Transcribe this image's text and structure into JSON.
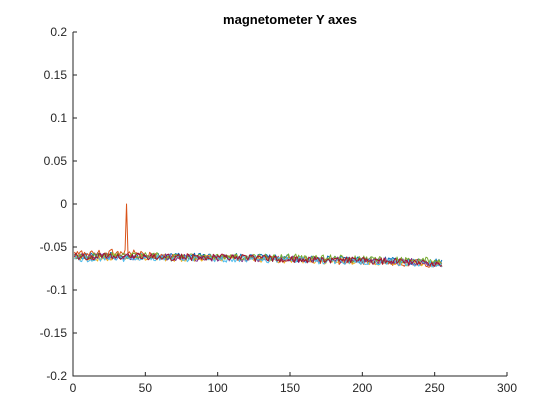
{
  "chart_data": {
    "type": "line",
    "title": "magnetometer Y axes",
    "xlabel": "",
    "ylabel": "",
    "xlim": [
      0,
      300
    ],
    "ylim": [
      -0.2,
      0.2
    ],
    "xticks": [
      0,
      50,
      100,
      150,
      200,
      250,
      300
    ],
    "yticks": [
      -0.2,
      -0.15,
      -0.1,
      -0.05,
      0,
      0.05,
      0.1,
      0.15,
      0.2
    ],
    "xtick_labels": [
      "0",
      "50",
      "100",
      "150",
      "200",
      "250",
      "300"
    ],
    "ytick_labels": [
      "-0.2",
      "-0.15",
      "-0.1",
      "-0.05",
      "0",
      "0.05",
      "0.1",
      "0.15",
      "0.2"
    ],
    "grid": false,
    "legend": "none",
    "series": [
      {
        "color": "#0072BD",
        "x": [
          1,
          25,
          50,
          75,
          100,
          125,
          150,
          175,
          200,
          225,
          255
        ],
        "y": [
          -0.061,
          -0.06,
          -0.061,
          -0.061,
          -0.061,
          -0.062,
          -0.063,
          -0.064,
          -0.065,
          -0.066,
          -0.068
        ]
      },
      {
        "color": "#D95319",
        "x": [
          1,
          20,
          36,
          37,
          38,
          50,
          75,
          100,
          125,
          150,
          175,
          200,
          225,
          255
        ],
        "y": [
          -0.058,
          -0.057,
          -0.056,
          0.0,
          -0.055,
          -0.06,
          -0.061,
          -0.062,
          -0.063,
          -0.064,
          -0.066,
          -0.067,
          -0.069,
          -0.071
        ]
      },
      {
        "color": "#EDB120",
        "x": [
          1,
          25,
          50,
          75,
          100,
          125,
          150,
          175,
          200,
          225,
          255
        ],
        "y": [
          -0.063,
          -0.062,
          -0.062,
          -0.063,
          -0.063,
          -0.064,
          -0.065,
          -0.066,
          -0.067,
          -0.068,
          -0.069
        ]
      },
      {
        "color": "#7E2F8E",
        "x": [
          1,
          25,
          50,
          75,
          100,
          125,
          150,
          175,
          200,
          225,
          255
        ],
        "y": [
          -0.062,
          -0.061,
          -0.062,
          -0.062,
          -0.063,
          -0.063,
          -0.064,
          -0.065,
          -0.066,
          -0.067,
          -0.068
        ]
      },
      {
        "color": "#77AC30",
        "x": [
          1,
          25,
          50,
          75,
          100,
          125,
          150,
          175,
          200,
          225,
          255
        ],
        "y": [
          -0.06,
          -0.06,
          -0.06,
          -0.061,
          -0.061,
          -0.062,
          -0.062,
          -0.063,
          -0.064,
          -0.065,
          -0.066
        ]
      },
      {
        "color": "#4DBEEE",
        "x": [
          1,
          25,
          50,
          75,
          100,
          125,
          150,
          175,
          200,
          225,
          255
        ],
        "y": [
          -0.064,
          -0.063,
          -0.063,
          -0.063,
          -0.064,
          -0.064,
          -0.065,
          -0.066,
          -0.067,
          -0.068,
          -0.07
        ]
      },
      {
        "color": "#A2142F",
        "x": [
          1,
          25,
          50,
          75,
          100,
          125,
          150,
          175,
          200,
          225,
          255
        ],
        "y": [
          -0.061,
          -0.061,
          -0.061,
          -0.062,
          -0.062,
          -0.063,
          -0.064,
          -0.065,
          -0.066,
          -0.067,
          -0.069
        ]
      }
    ]
  }
}
